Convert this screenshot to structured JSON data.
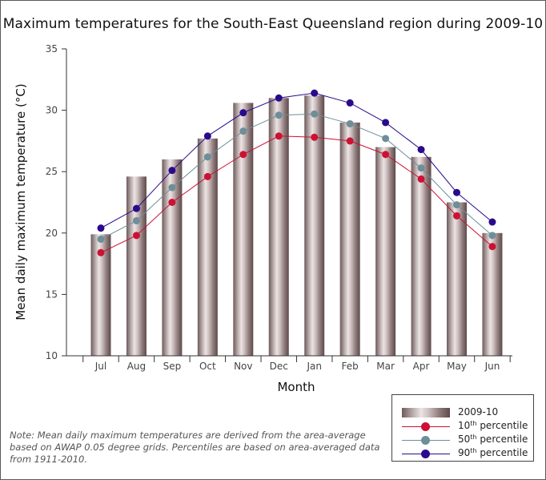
{
  "chart_data": {
    "type": "bar",
    "title": "Maximum temperatures for the South-East Queensland region during 2009-10",
    "xlabel": "Month",
    "ylabel": "Mean daily maximum temperature (°C)",
    "ylim": [
      10,
      35
    ],
    "yticks": [
      10,
      15,
      20,
      25,
      30,
      35
    ],
    "categories": [
      "Jul",
      "Aug",
      "Sep",
      "Oct",
      "Nov",
      "Dec",
      "Jan",
      "Feb",
      "Mar",
      "Apr",
      "May",
      "Jun"
    ],
    "bar_series": {
      "name": "2009-10",
      "values": [
        19.9,
        24.6,
        26.0,
        27.7,
        30.6,
        31.0,
        31.2,
        29.0,
        27.0,
        26.2,
        22.5,
        20.0
      ]
    },
    "series": [
      {
        "name_prefix": "10",
        "name_sup": "th",
        "name_suffix": " percentile",
        "type": "line",
        "color": "#cc1133",
        "values": [
          18.4,
          19.8,
          22.5,
          24.6,
          26.4,
          27.9,
          27.8,
          27.5,
          26.4,
          24.4,
          21.4,
          18.9
        ]
      },
      {
        "name_prefix": "50",
        "name_sup": "th",
        "name_suffix": " percentile",
        "type": "line",
        "color": "#6e8e98",
        "values": [
          19.5,
          21.0,
          23.7,
          26.2,
          28.3,
          29.6,
          29.7,
          28.9,
          27.7,
          25.3,
          22.3,
          19.8
        ]
      },
      {
        "name_prefix": "90",
        "name_sup": "th",
        "name_suffix": " percentile",
        "type": "line",
        "color": "#2a0a8c",
        "values": [
          20.4,
          22.0,
          25.1,
          27.9,
          29.8,
          31.0,
          31.4,
          30.6,
          29.0,
          26.8,
          23.3,
          20.9
        ]
      }
    ],
    "legend": {
      "position": "bottom-right",
      "bar_label": "2009-10"
    },
    "grid": false,
    "note": "Note: Mean daily maximum temperatures are derived from the area-average based on AWAP 0.05 degree grids. Percentiles are based on area-averaged data from 1911-2010."
  }
}
